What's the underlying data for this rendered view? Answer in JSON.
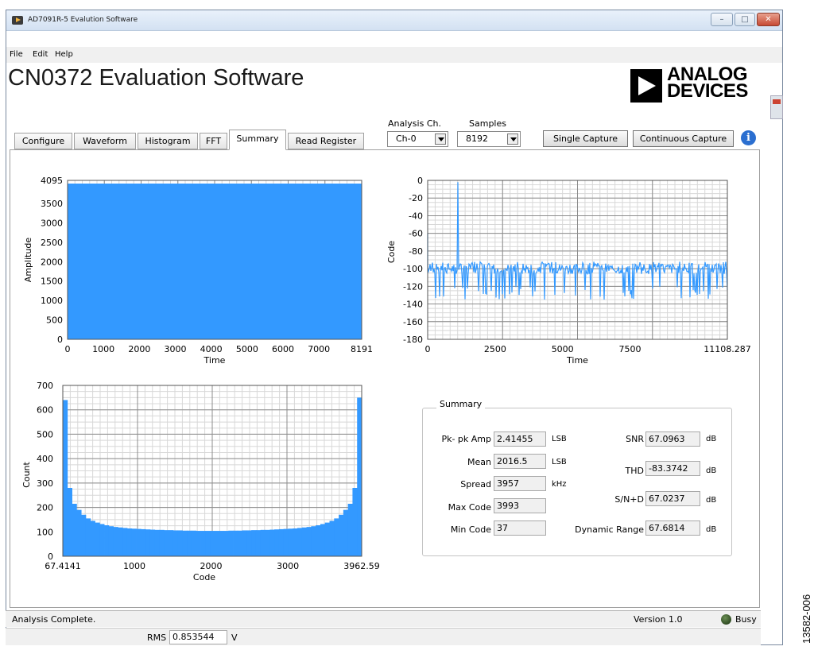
{
  "window": {
    "title": "AD7091R-5 Evalution Software",
    "minimize_glyph": "–",
    "maximize_glyph": "□",
    "close_glyph": "✕"
  },
  "menu": [
    "File",
    "Edit",
    "Help"
  ],
  "app_title": "CN0372 Evaluation Software",
  "logo": {
    "line1": "ANALOG",
    "line2": "DEVICES"
  },
  "tabs": [
    {
      "label": "Configure",
      "active": false
    },
    {
      "label": "Waveform",
      "active": false
    },
    {
      "label": "Histogram",
      "active": false
    },
    {
      "label": "FFT",
      "active": false
    },
    {
      "label": "Summary",
      "active": true
    },
    {
      "label": "Read Register",
      "active": false
    }
  ],
  "controls": {
    "analysis_ch_label": "Analysis Ch.",
    "analysis_ch_value": "Ch-0",
    "samples_label": "Samples",
    "samples_value": "8192",
    "single_capture": "Single Capture",
    "continuous_capture": "Continuous Capture",
    "info_glyph": "i"
  },
  "waveform_plot": {
    "ylabel": "Amplitude",
    "xlabel": "Time",
    "yticks": [
      "0",
      "500",
      "1000",
      "1500",
      "2000",
      "2500",
      "3000",
      "3500",
      "4095"
    ],
    "xticks": [
      "0",
      "1000",
      "2000",
      "3000",
      "4000",
      "5000",
      "6000",
      "7000",
      "8191"
    ],
    "fill_color": "#3399ff"
  },
  "fft_plot": {
    "ylabel": "Code",
    "xlabel": "Time",
    "yticks": [
      "0",
      "-20",
      "-40",
      "-60",
      "-80",
      "-100",
      "-120",
      "-140",
      "-160",
      "-180"
    ],
    "xticks": [
      "0",
      "2500",
      "5000",
      "7500",
      "11108.287"
    ],
    "line_color": "#3399ff"
  },
  "histogram_plot": {
    "ylabel": "Count",
    "xlabel": "Code",
    "yticks": [
      "0",
      "100",
      "200",
      "300",
      "400",
      "500",
      "600",
      "700"
    ],
    "xticks": [
      "67.4141",
      "1000",
      "2000",
      "3000",
      "3962.59"
    ],
    "fill_color": "#3399ff"
  },
  "chart_data": [
    {
      "type": "area",
      "xlabel": "Time",
      "ylabel": "Amplitude",
      "xlim": [
        0,
        8191
      ],
      "ylim": [
        0,
        4095
      ],
      "series": [
        {
          "x": [
            0,
            8191
          ],
          "values": [
            4095,
            4095
          ]
        }
      ]
    },
    {
      "type": "line",
      "xlabel": "Time",
      "ylabel": "Code",
      "xlim": [
        0,
        11108.287
      ],
      "ylim": [
        -180,
        0
      ],
      "noise_floor": [
        -135,
        -92
      ],
      "series": [
        {
          "x": [
            0,
            1110,
            11108.287
          ],
          "values": [
            -95,
            -2,
            -100
          ]
        }
      ]
    },
    {
      "type": "bar",
      "xlabel": "Code",
      "ylabel": "Count",
      "xlim": [
        67.4141,
        3962.59
      ],
      "ylim": [
        0,
        700
      ],
      "values": [
        640,
        280,
        215,
        190,
        170,
        155,
        145,
        138,
        132,
        127,
        123,
        120,
        118,
        116,
        114,
        113,
        112,
        111,
        110,
        109,
        108,
        108,
        107,
        107,
        106,
        106,
        105,
        105,
        105,
        104,
        104,
        104,
        104,
        104,
        104,
        104,
        105,
        105,
        105,
        106,
        106,
        107,
        107,
        108,
        108,
        109,
        110,
        111,
        112,
        113,
        114,
        116,
        118,
        120,
        123,
        127,
        132,
        138,
        145,
        155,
        170,
        190,
        215,
        280,
        650
      ]
    }
  ],
  "summary": {
    "title": "Summary",
    "rows_left": [
      {
        "label": "Pk- pk Amp",
        "value": "2.41455",
        "unit": "LSB"
      },
      {
        "label": "Mean",
        "value": "2016.5",
        "unit": "LSB"
      },
      {
        "label": "Spread",
        "value": "3957",
        "unit": "kHz"
      },
      {
        "label": "Max Code",
        "value": "3993",
        "unit": ""
      },
      {
        "label": "Min Code",
        "value": "37",
        "unit": ""
      }
    ],
    "rows_right": [
      {
        "label": "SNR",
        "value": "67.0963",
        "unit": "dB"
      },
      {
        "label": "THD",
        "value": "-83.3742",
        "unit": "dB"
      },
      {
        "label": "S/N+D",
        "value": "67.0237",
        "unit": "dB"
      },
      {
        "label": "Dynamic Range",
        "value": "67.6814",
        "unit": "dB"
      }
    ]
  },
  "status": {
    "message": "Analysis Complete.",
    "version": "Version 1.0",
    "busy": "Busy",
    "rms_label": "RMS",
    "rms_value": "0.853544",
    "rms_unit": "V"
  },
  "figure_id": "13582-006"
}
